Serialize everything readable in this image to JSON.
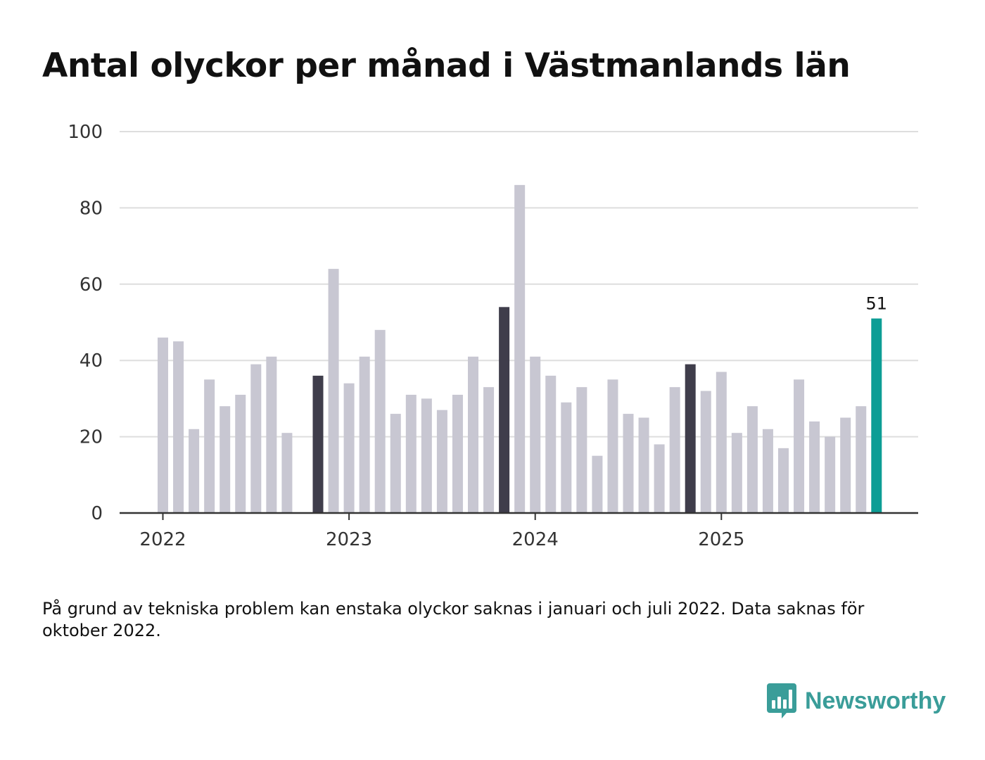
{
  "title": "Antal olyckor per månad i Västmanlands län",
  "footnote": "På grund av tekniska problem kan enstaka olyckor saknas i januari och juli 2022. Data saknas för oktober 2022.",
  "brand": {
    "name": "Newsworthy",
    "icon": "newsworthy-logo-icon",
    "color": "#3a9d99"
  },
  "colors": {
    "default": "#c8c7d2",
    "highlight": "#3f3d4b",
    "latest": "#0c9d95",
    "grid": "#dedede",
    "axis": "#333333"
  },
  "chart_data": {
    "type": "bar",
    "title": "Antal olyckor per månad i Västmanlands län",
    "xlabel": "",
    "ylabel": "",
    "ylim": [
      0,
      100
    ],
    "yticks": [
      0,
      20,
      40,
      60,
      80,
      100
    ],
    "grid": true,
    "x_tick_labels": [
      {
        "label": "2022",
        "index": 0
      },
      {
        "label": "2023",
        "index": 12
      },
      {
        "label": "2024",
        "index": 24
      },
      {
        "label": "2025",
        "index": 36
      }
    ],
    "categories": [
      "2022-01",
      "2022-02",
      "2022-03",
      "2022-04",
      "2022-05",
      "2022-06",
      "2022-07",
      "2022-08",
      "2022-09",
      "2022-10",
      "2022-11",
      "2022-12",
      "2023-01",
      "2023-02",
      "2023-03",
      "2023-04",
      "2023-05",
      "2023-06",
      "2023-07",
      "2023-08",
      "2023-09",
      "2023-10",
      "2023-11",
      "2023-12",
      "2024-01",
      "2024-02",
      "2024-03",
      "2024-04",
      "2024-05",
      "2024-06",
      "2024-07",
      "2024-08",
      "2024-09",
      "2024-10",
      "2024-11",
      "2024-12",
      "2025-01",
      "2025-02",
      "2025-03",
      "2025-04",
      "2025-05",
      "2025-06",
      "2025-07",
      "2025-08",
      "2025-09",
      "2025-10",
      "2025-11"
    ],
    "values": [
      46,
      45,
      22,
      35,
      28,
      31,
      39,
      41,
      21,
      null,
      36,
      64,
      34,
      41,
      48,
      26,
      31,
      30,
      27,
      31,
      41,
      33,
      54,
      86,
      41,
      36,
      29,
      33,
      15,
      35,
      26,
      25,
      18,
      33,
      39,
      32,
      37,
      21,
      28,
      22,
      17,
      35,
      24,
      20,
      25,
      28,
      51
    ],
    "highlight_indices": [
      10,
      22,
      34
    ],
    "latest_index": 46,
    "data_labels": [
      {
        "index": 46,
        "text": "51"
      }
    ]
  }
}
